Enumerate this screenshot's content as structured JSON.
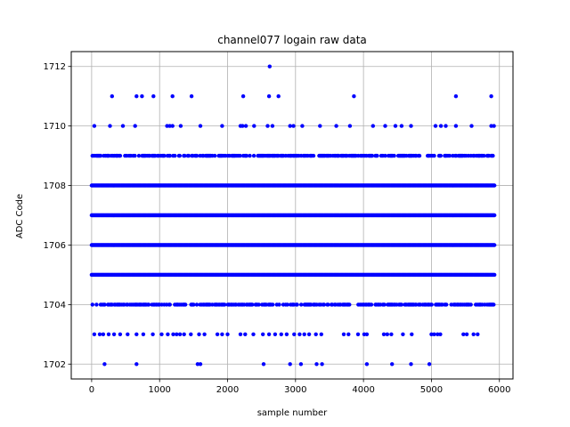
{
  "chart_data": {
    "type": "scatter",
    "title": "channel077 logain raw data",
    "xlabel": "sample number",
    "ylabel": "ADC Code",
    "xlim": [
      -300,
      6200
    ],
    "ylim": [
      1701.5,
      1712.5
    ],
    "xticks": [
      0,
      1000,
      2000,
      3000,
      4000,
      5000,
      6000
    ],
    "yticks": [
      1702,
      1704,
      1706,
      1708,
      1710,
      1712
    ],
    "grid": true,
    "marker_color": "#0000ff",
    "n_samples": 5930,
    "levels": [
      {
        "y": 1705,
        "x": [
          0,
          5930
        ],
        "dense": true
      },
      {
        "y": 1706,
        "x": [
          0,
          5930
        ],
        "dense": true
      },
      {
        "y": 1707,
        "x": [
          0,
          5930
        ],
        "dense": true
      },
      {
        "y": 1708,
        "x": [
          0,
          5930
        ],
        "dense": true
      },
      {
        "y": 1704,
        "x": [
          0,
          5930
        ],
        "dense": false
      },
      {
        "y": 1709,
        "x": [
          0,
          5930
        ],
        "dense": false
      },
      {
        "y": 1703,
        "x": [
          40,
          120,
          170,
          250,
          330,
          420,
          530,
          660,
          760,
          900,
          1030,
          1120,
          1200,
          1250,
          1300,
          1360,
          1460,
          1580,
          1660,
          1850,
          1920,
          2000,
          2190,
          2260,
          2380,
          2520,
          2610,
          2700,
          2790,
          2870,
          2980,
          3060,
          3130,
          3200,
          3300,
          3380,
          3710,
          3780,
          3920,
          4010,
          4050,
          4300,
          4350,
          4410,
          4580,
          4710,
          5000,
          5040,
          5090,
          5130,
          5470,
          5520,
          5620,
          5680
        ]
      },
      {
        "y": 1702,
        "x": [
          190,
          660,
          1560,
          1600,
          2530,
          2920,
          3080,
          3310,
          3390,
          4050,
          4420,
          4700,
          4970
        ]
      },
      {
        "y": 1710,
        "x": [
          40,
          270,
          460,
          640,
          1110,
          1150,
          1190,
          1310,
          1600,
          1920,
          2190,
          2220,
          2270,
          2390,
          2590,
          2660,
          2920,
          2970,
          3100,
          3360,
          3600,
          3800,
          4140,
          4320,
          4470,
          4560,
          4700,
          5060,
          5140,
          5210,
          5360,
          5590,
          5880,
          5920
        ]
      },
      {
        "y": 1711,
        "x": [
          300,
          660,
          740,
          910,
          1190,
          1470,
          2230,
          2610,
          2750,
          3860,
          5360,
          5880
        ]
      },
      {
        "y": 1712,
        "x": [
          2620
        ]
      }
    ]
  }
}
